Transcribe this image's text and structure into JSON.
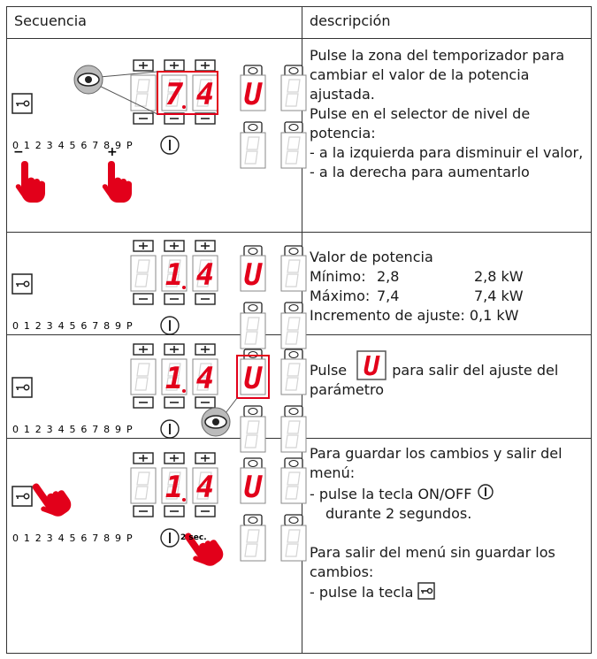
{
  "table": {
    "headers": [
      "Secuencia",
      "descripción"
    ],
    "rows": [
      {
        "panel": {
          "digits": [
            "7",
            "4"
          ],
          "level": "U",
          "scale": "0 1 2 3 4 5 6 7 8 9 P",
          "minus_mark": "−",
          "plus_mark": "+"
        },
        "description": [
          "Pulse la zona del temporizador para cambiar el valor de la potencia ajustada.",
          "Pulse en el selector de nivel de potencia:",
          "- a la izquierda para disminuir el valor,",
          "- a la derecha para aumentarlo"
        ]
      },
      {
        "panel": {
          "digits": [
            "1",
            "4"
          ],
          "level": "U",
          "scale": "0 1 2 3 4 5 6 7 8 9 P"
        },
        "description": {
          "heading": "Valor de potencia",
          "min_label": "Mínimo:",
          "min_value": "2,8",
          "min_kw": "2,8 kW",
          "max_label": "Máximo:",
          "max_value": "7,4",
          "max_kw": "7,4 kW",
          "step": "Incremento de ajuste: 0,1 kW"
        }
      },
      {
        "panel": {
          "digits": [
            "1",
            "4"
          ],
          "level": "U",
          "scale": "0 1 2 3 4 5 6 7 8 9 P"
        },
        "description": {
          "before": "Pulse",
          "icon": "U",
          "after": "para salir del ajuste del parámetro"
        }
      },
      {
        "panel": {
          "digits": [
            "1",
            "4"
          ],
          "level": "U",
          "scale": "0 1 2 3 4 5 6 7 8 9 P",
          "hold": "2 sec."
        },
        "description": {
          "save": "Para guardar los cambios y salir del menú:",
          "press_onoff": "- pulse la tecla ON/OFF",
          "duration": "durante 2 segundos.",
          "nosave": "Para salir del menú sin guardar los cambios:",
          "press_key": "- pulse la tecla"
        }
      }
    ]
  }
}
